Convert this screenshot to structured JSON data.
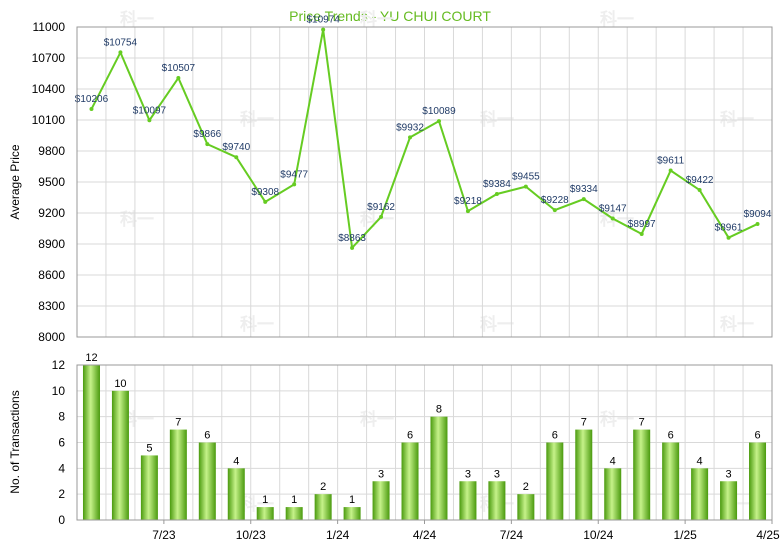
{
  "colors": {
    "line": "#66cc22",
    "title": "#66bb22",
    "bar_dark": "#4a9a0e",
    "bar_light": "#c6f28a",
    "label": "#1f3a66"
  },
  "chart_data": [
    {
      "type": "line",
      "title": "Price Trends - YU CHUI COURT",
      "ylabel": "Average Price",
      "ylim": [
        8000,
        11000
      ],
      "yticks": [
        8000,
        8300,
        8600,
        8900,
        9200,
        9500,
        9800,
        10100,
        10400,
        10700,
        11000
      ],
      "grid": true,
      "x": [
        "2023-05",
        "2023-06",
        "2023-07",
        "2023-08",
        "2023-09",
        "2023-10",
        "2023-11",
        "2023-12",
        "2024-01",
        "2024-02",
        "2024-03",
        "2024-04",
        "2024-05",
        "2024-06",
        "2024-07",
        "2024-08",
        "2024-09",
        "2024-10",
        "2024-11",
        "2024-12",
        "2025-01",
        "2025-02",
        "2025-03",
        "2025-04"
      ],
      "values": [
        10206,
        10754,
        10097,
        10507,
        9866,
        9740,
        9308,
        9477,
        10974,
        8863,
        9162,
        9932,
        10089,
        9218,
        9384,
        9455,
        9228,
        9334,
        9147,
        8997,
        9611,
        9422,
        8961,
        9094
      ],
      "labels": [
        "$10206",
        "$10754",
        "$10097",
        "$10507",
        "$9866",
        "$9740",
        "$9308",
        "$9477",
        "$10974",
        "$8863",
        "$9162",
        "$9932",
        "$10089",
        "$9218",
        "$9384",
        "$9455",
        "$9228",
        "$9334",
        "$9147",
        "$8997",
        "$9611",
        "$9422",
        "$8961",
        "$9094"
      ]
    },
    {
      "type": "bar",
      "ylabel": "No. of Transactions",
      "ylim": [
        0,
        12
      ],
      "yticks": [
        0,
        2,
        4,
        6,
        8,
        10,
        12
      ],
      "grid": true,
      "x": [
        "2023-05",
        "2023-06",
        "2023-07",
        "2023-08",
        "2023-09",
        "2023-10",
        "2023-11",
        "2023-12",
        "2024-01",
        "2024-02",
        "2024-03",
        "2024-04",
        "2024-05",
        "2024-06",
        "2024-07",
        "2024-08",
        "2024-09",
        "2024-10",
        "2024-11",
        "2024-12",
        "2025-01",
        "2025-02",
        "2025-03",
        "2025-04"
      ],
      "values": [
        12,
        10,
        5,
        7,
        6,
        4,
        1,
        1,
        2,
        1,
        3,
        6,
        8,
        3,
        3,
        2,
        6,
        7,
        4,
        7,
        6,
        4,
        3,
        6
      ]
    }
  ],
  "x_tick_labels": [
    "7/23",
    "10/23",
    "1/24",
    "4/24",
    "7/24",
    "10/24",
    "1/25",
    "4/25"
  ],
  "watermark": "科一"
}
